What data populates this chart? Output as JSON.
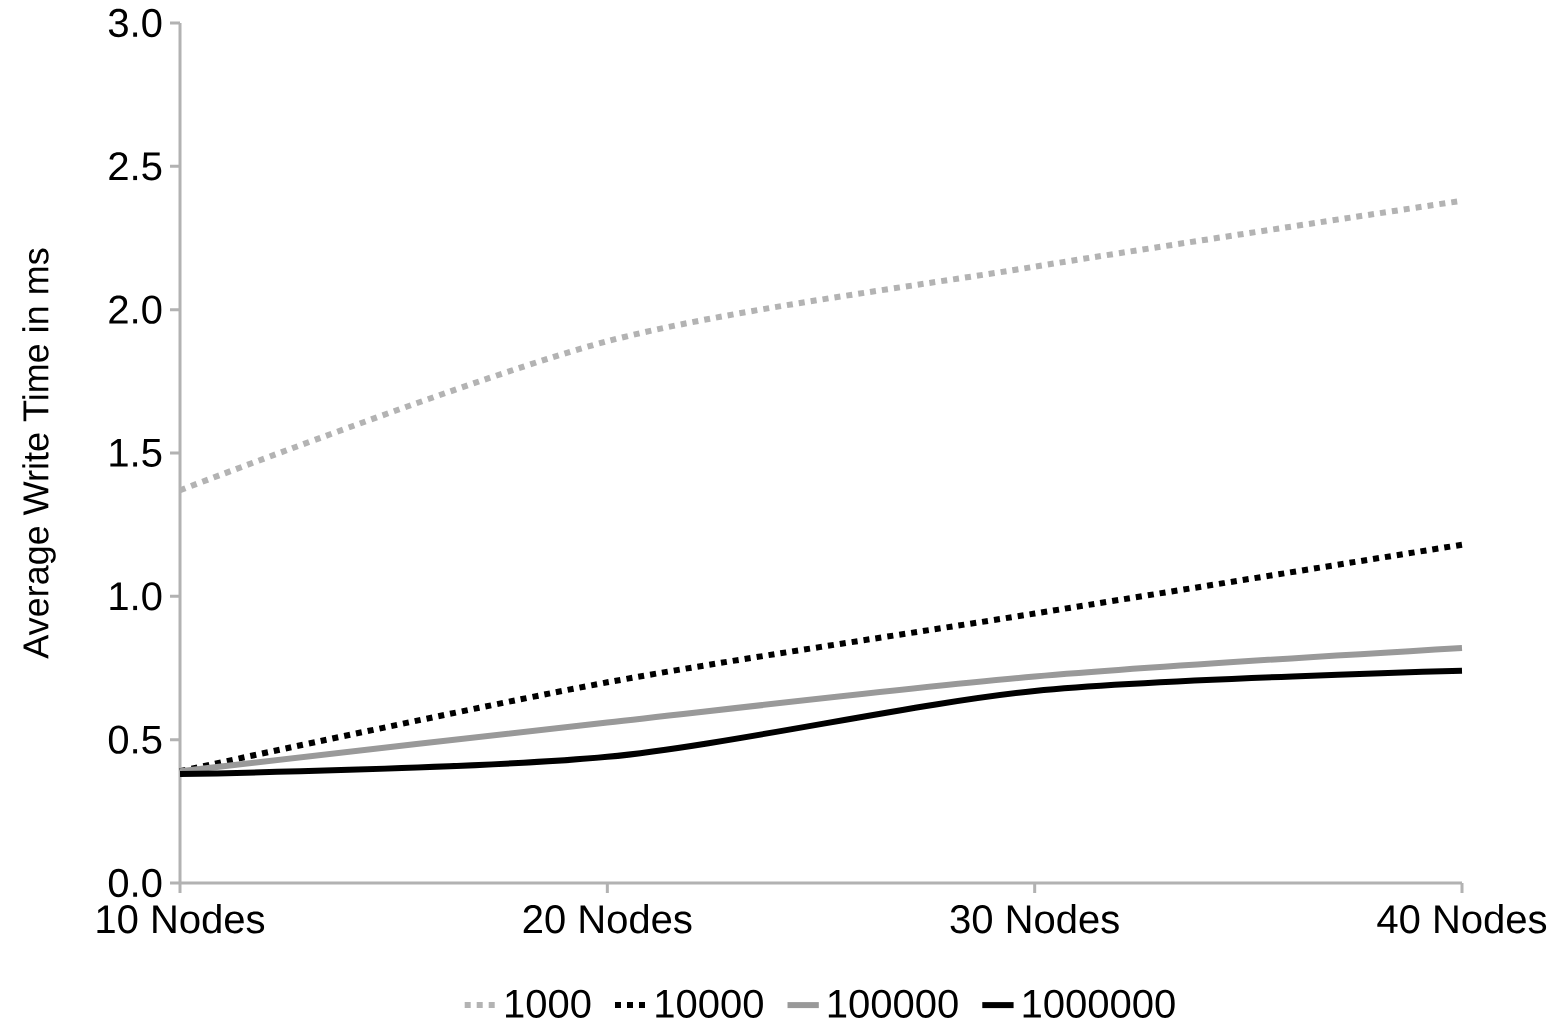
{
  "chart_data": {
    "type": "line",
    "ylabel": "Average Write Time in ms",
    "categories": [
      "10 Nodes",
      "20 Nodes",
      "30 Nodes",
      "40 Nodes"
    ],
    "series": [
      {
        "name": "1000",
        "color": "#b3b3b3",
        "line_style": "dotted",
        "values": [
          1.37,
          1.89,
          2.15,
          2.38
        ]
      },
      {
        "name": "10000",
        "color": "#000000",
        "line_style": "dotted",
        "values": [
          0.39,
          0.7,
          0.94,
          1.18
        ]
      },
      {
        "name": "100000",
        "color": "#999999",
        "line_style": "solid",
        "values": [
          0.39,
          0.56,
          0.72,
          0.82
        ]
      },
      {
        "name": "1000000",
        "color": "#000000",
        "line_style": "solid",
        "values": [
          0.38,
          0.44,
          0.67,
          0.74
        ]
      }
    ],
    "ylim": [
      0,
      3
    ],
    "yticks": [
      {
        "value": 0,
        "label": "0.0"
      },
      {
        "value": 0.5,
        "label": "0.5"
      },
      {
        "value": 1,
        "label": "1.0"
      },
      {
        "value": 1.5,
        "label": "1.5"
      },
      {
        "value": 2,
        "label": "2.0"
      },
      {
        "value": 2.5,
        "label": "2.5"
      },
      {
        "value": 3,
        "label": "3.0"
      }
    ],
    "grid": false,
    "legend": "bottom",
    "marker": "none"
  }
}
